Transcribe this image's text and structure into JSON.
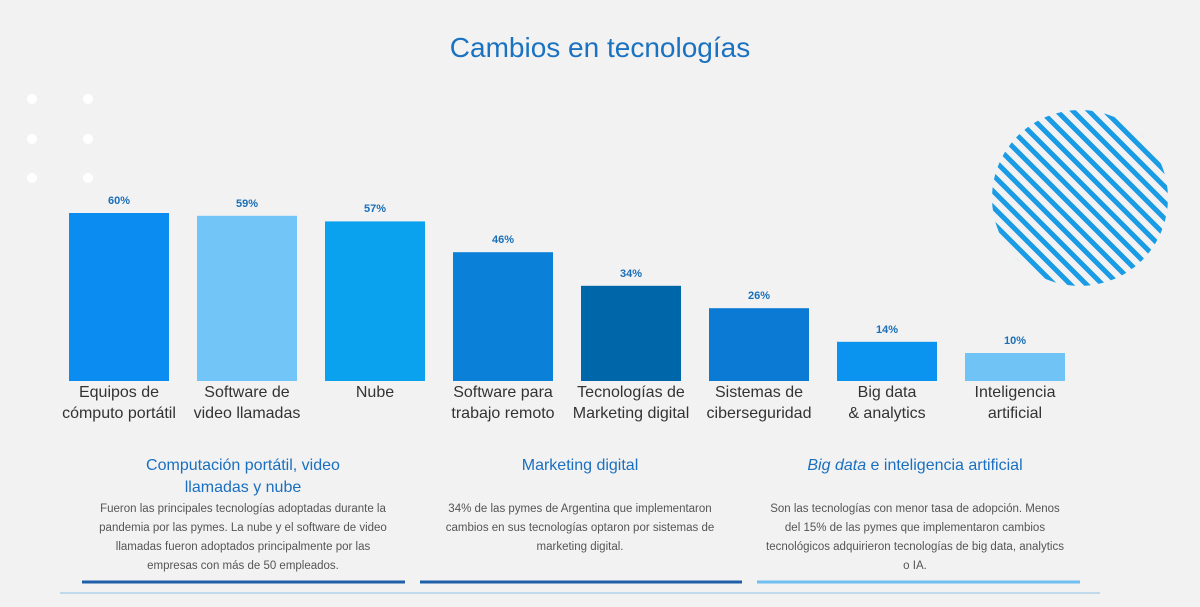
{
  "title": "Cambios en tecnologías",
  "chart_data": {
    "type": "bar",
    "categories": [
      "Equipos de\ncómputo portátil",
      "Software de\nvideo llamadas",
      "Nube",
      "Software para\ntrabajo remoto",
      "Tecnologías de\nMarketing digital",
      "Sistemas de\nciberseguridad",
      "Big data\n& analytics",
      "Inteligencia\nartificial"
    ],
    "values": [
      60,
      59,
      57,
      46,
      34,
      26,
      14,
      10
    ],
    "value_labels": [
      "60%",
      "59%",
      "57%",
      "46%",
      "34%",
      "26%",
      "14%",
      "10%"
    ],
    "colors": [
      "#0a8cf0",
      "#72c6f7",
      "#0aa2ee",
      "#0a80d8",
      "#0066aa",
      "#0a7ad4",
      "#0a94f0",
      "#70c4f5"
    ]
  },
  "sections": [
    {
      "title": "Computación portátil, video\nllamadas y nube",
      "body": "Fueron las principales tecnologías adoptadas durante la pandemia por las pymes. La nube y el software de video llamadas fueron adoptados principalmente por las empresas con más de 50 empleados."
    },
    {
      "title": "Marketing digital",
      "body": "34% de las pymes de Argentina que implementaron cambios en sus tecnologías optaron por sistemas de marketing digital."
    },
    {
      "title_em": "Big data",
      "title": " e inteligencia artificial",
      "body": "Son las tecnologías con menor tasa de adopción. Menos del 15% de las pymes que implementaron cambios tecnológicos adquirieron tecnologías de big data, analytics o IA."
    }
  ]
}
